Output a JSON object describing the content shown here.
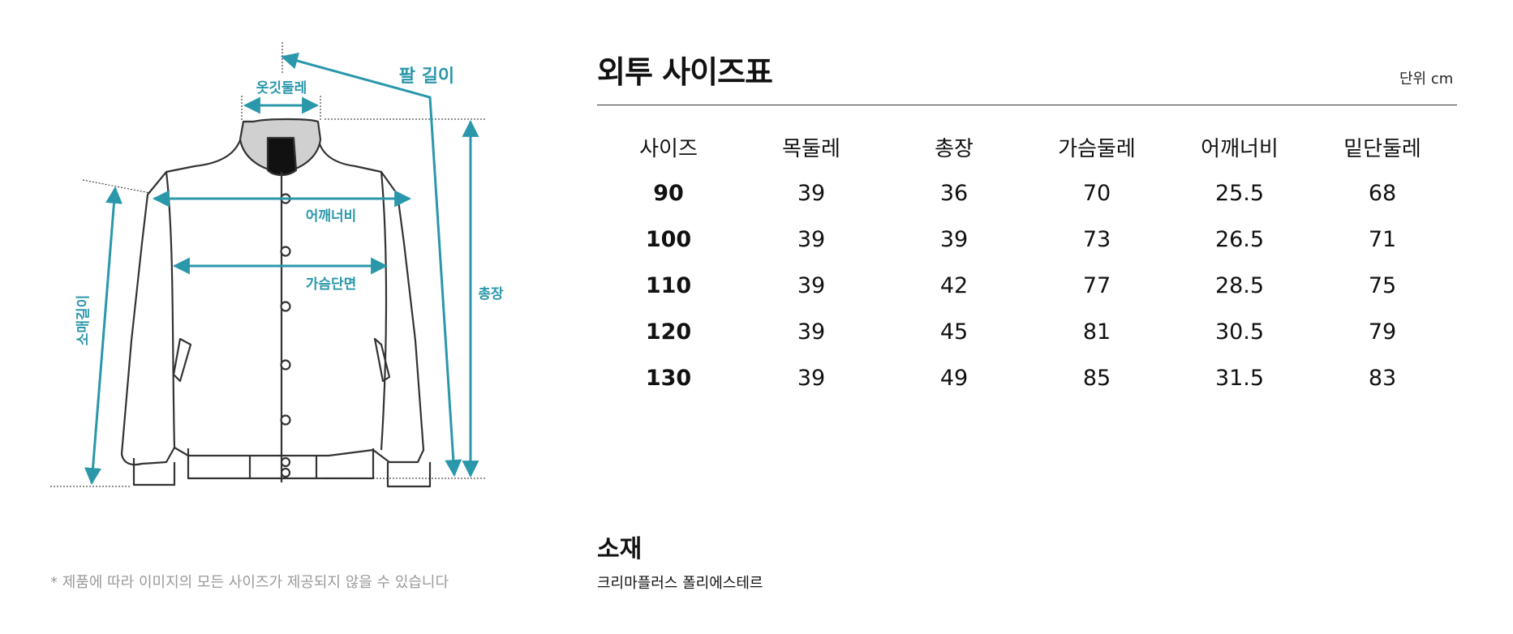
{
  "diagram": {
    "labels": {
      "collar": "옷깃둘레",
      "arm_length": "팔 길이",
      "shoulder": "어깨너비",
      "chest": "가슴단면",
      "total_length": "총장",
      "sleeve": "소매길이"
    },
    "accent_color": "#2a97ab",
    "icon": "jacket-outline-icon"
  },
  "disclaimer": "* 제품에 따라 이미지의 모든 사이즈가 제공되지 않을 수 있습니다",
  "size_chart": {
    "title": "외투 사이즈표",
    "unit": "단위 cm",
    "headers": [
      "사이즈",
      "목둘레",
      "총장",
      "가슴둘레",
      "어깨너비",
      "밑단둘레"
    ],
    "rows": [
      [
        "90",
        "39",
        "36",
        "70",
        "25.5",
        "68"
      ],
      [
        "100",
        "39",
        "39",
        "73",
        "26.5",
        "71"
      ],
      [
        "110",
        "39",
        "42",
        "77",
        "28.5",
        "75"
      ],
      [
        "120",
        "39",
        "45",
        "81",
        "30.5",
        "79"
      ],
      [
        "130",
        "39",
        "49",
        "85",
        "31.5",
        "83"
      ]
    ]
  },
  "material": {
    "title": "소재",
    "value": "크리마플러스 폴리에스테르"
  }
}
